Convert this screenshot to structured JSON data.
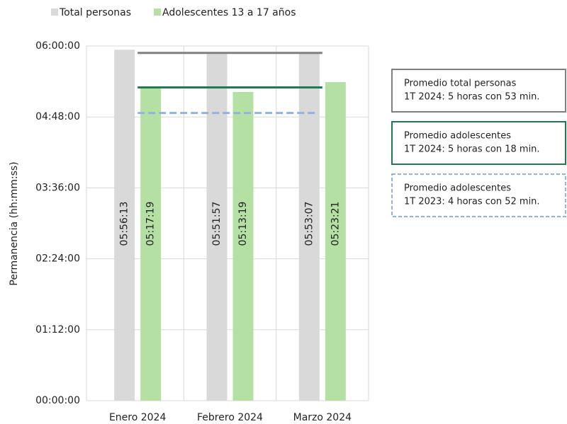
{
  "chart_data": {
    "type": "bar",
    "categories": [
      "Enero 2024",
      "Febrero 2024",
      "Marzo 2024"
    ],
    "series": [
      {
        "name": "Total personas",
        "color": "#d9d9d9",
        "values": [
          21373,
          21117,
          21187
        ],
        "value_labels": [
          "05:56:13",
          "05:51:57",
          "05:53:07"
        ]
      },
      {
        "name": "Adolescentes 13 a 17 años",
        "color": "#b4e0a4",
        "values": [
          19039,
          18799,
          19401
        ],
        "value_labels": [
          "05:17:19",
          "05:13:19",
          "05:23:21"
        ]
      }
    ],
    "ylabel": "Permanencia (hh:mm:ss)",
    "ylim": [
      0,
      21600
    ],
    "yticks": [
      {
        "value": 0,
        "label": "00:00:00"
      },
      {
        "value": 4320,
        "label": "01:12:00"
      },
      {
        "value": 8640,
        "label": "02:24:00"
      },
      {
        "value": 12960,
        "label": "03:36:00"
      },
      {
        "value": 17280,
        "label": "04:48:00"
      },
      {
        "value": 21600,
        "label": "06:00:00"
      }
    ],
    "grid": true,
    "legend": "top",
    "reference_lines": [
      {
        "value": 21180,
        "color": "#808080",
        "dashed": false,
        "label": [
          "Promedio total personas",
          "1T 2024: 5 horas con 53 min."
        ]
      },
      {
        "value": 19080,
        "color": "#1e7a50",
        "dashed": false,
        "label": [
          "Promedio adolescentes",
          "1T 2024: 5 horas con 18 min."
        ]
      },
      {
        "value": 17520,
        "color": "#8fb4e3",
        "dashed": true,
        "label": [
          "Promedio adolescentes",
          "1T 2023: 4 horas con 52 min."
        ]
      }
    ]
  }
}
